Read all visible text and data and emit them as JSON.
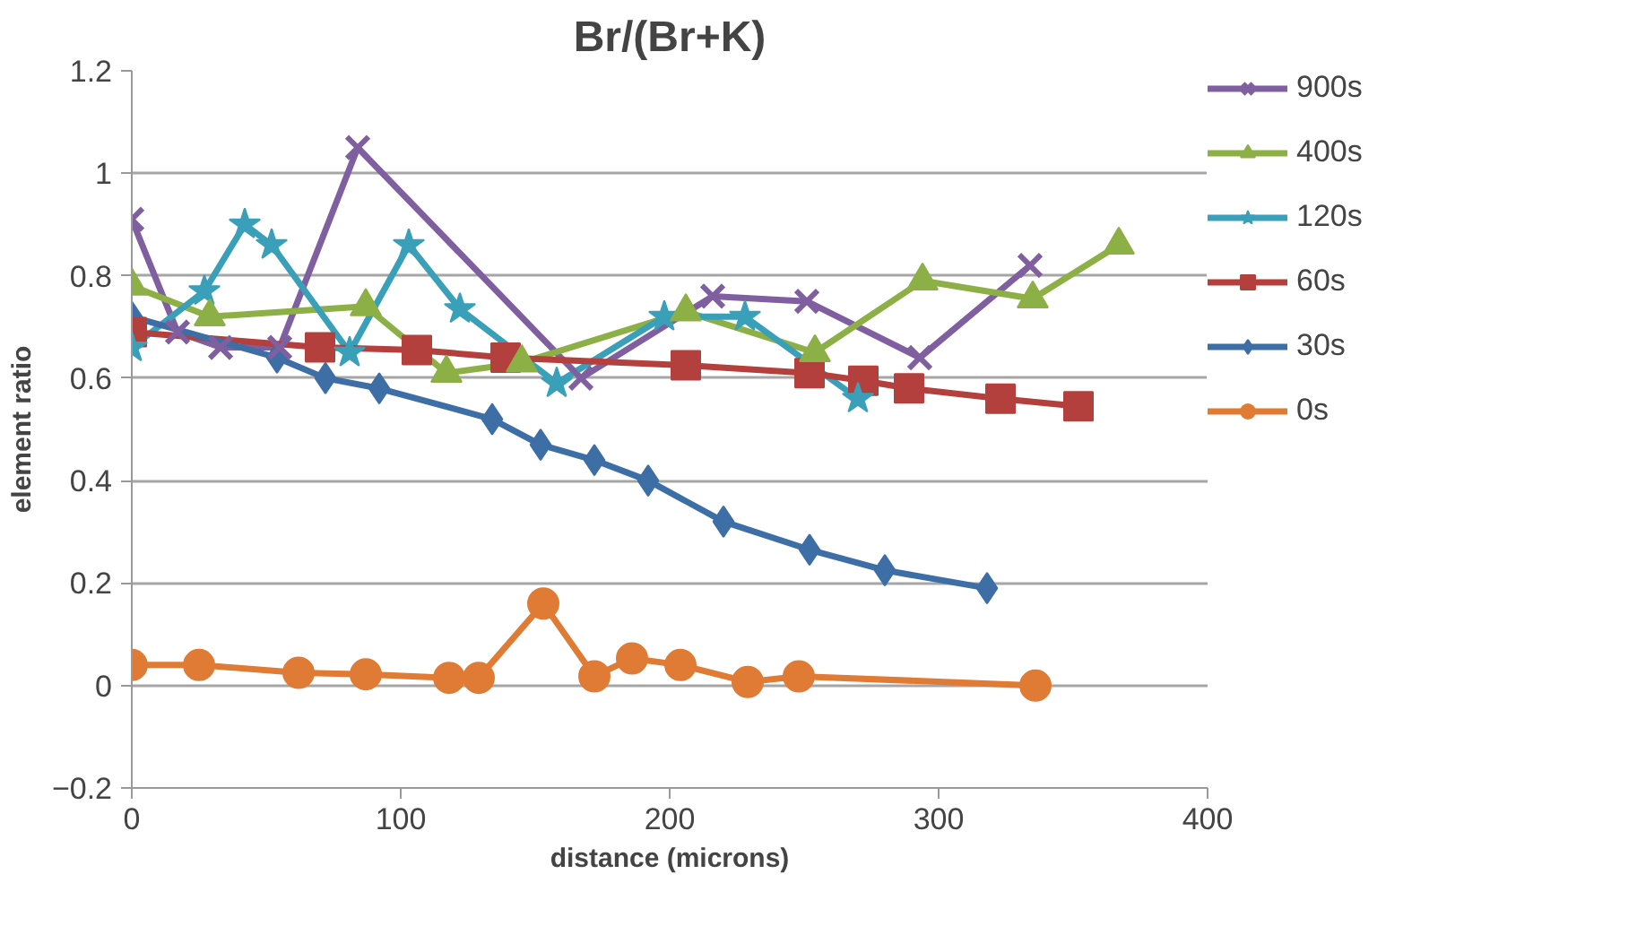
{
  "chart_data": {
    "type": "line",
    "title": "Br/(Br+K)",
    "xlabel": "distance (microns)",
    "ylabel": "element ratio",
    "xlim": [
      0,
      400
    ],
    "xticks": [
      0,
      100,
      200,
      300,
      400
    ],
    "ylim": [
      -0.2,
      1.2
    ],
    "yticks": [
      -0.2,
      0,
      0.2,
      0.4,
      0.6,
      0.8,
      {
        "value": 1,
        "label": "1"
      },
      1.2
    ],
    "grid": "y",
    "legend": "right",
    "line_style": "solid",
    "series": [
      {
        "name": "900s",
        "color": "#7f5f9f",
        "marker": "cross",
        "x": [
          0,
          17,
          33,
          55,
          84,
          167,
          216,
          251,
          293,
          334
        ],
        "values": [
          0.91,
          0.69,
          0.66,
          0.66,
          1.05,
          0.6,
          0.76,
          0.75,
          0.64,
          0.82
        ]
      },
      {
        "name": "400s",
        "color": "#8db046",
        "marker": "triangle",
        "x": [
          0,
          29,
          87,
          117,
          145,
          206,
          254,
          294,
          335,
          367
        ],
        "values": [
          0.78,
          0.72,
          0.74,
          0.61,
          0.63,
          0.73,
          0.65,
          0.79,
          0.755,
          0.86
        ]
      },
      {
        "name": "120s",
        "color": "#3a9fb8",
        "marker": "star",
        "x": [
          0,
          27,
          42,
          52,
          81,
          103,
          122,
          158,
          198,
          228,
          270
        ],
        "values": [
          0.66,
          0.77,
          0.9,
          0.86,
          0.65,
          0.86,
          0.735,
          0.59,
          0.72,
          0.72,
          0.56
        ]
      },
      {
        "name": "60s",
        "color": "#b3403d",
        "marker": "square",
        "x": [
          0,
          70,
          106,
          139,
          206,
          252,
          272,
          289,
          323,
          352
        ],
        "values": [
          0.69,
          0.66,
          0.655,
          0.64,
          0.625,
          0.61,
          0.595,
          0.58,
          0.56,
          0.545
        ]
      },
      {
        "name": "30s",
        "color": "#3d6ea6",
        "marker": "diamond",
        "x": [
          0,
          54,
          72,
          92,
          134,
          152,
          172,
          192,
          220,
          252,
          280,
          318
        ],
        "values": [
          0.72,
          0.64,
          0.6,
          0.58,
          0.52,
          0.47,
          0.44,
          0.4,
          0.32,
          0.265,
          0.225,
          0.19
        ]
      },
      {
        "name": "0s",
        "color": "#e07b35",
        "marker": "circle",
        "x": [
          0,
          25,
          62,
          87,
          118,
          129,
          153,
          172,
          186,
          204,
          229,
          248,
          336
        ],
        "values": [
          0.04,
          0.04,
          0.025,
          0.022,
          0.015,
          0.015,
          0.16,
          0.018,
          0.053,
          0.04,
          0.007,
          0.018,
          0.0
        ]
      }
    ]
  }
}
